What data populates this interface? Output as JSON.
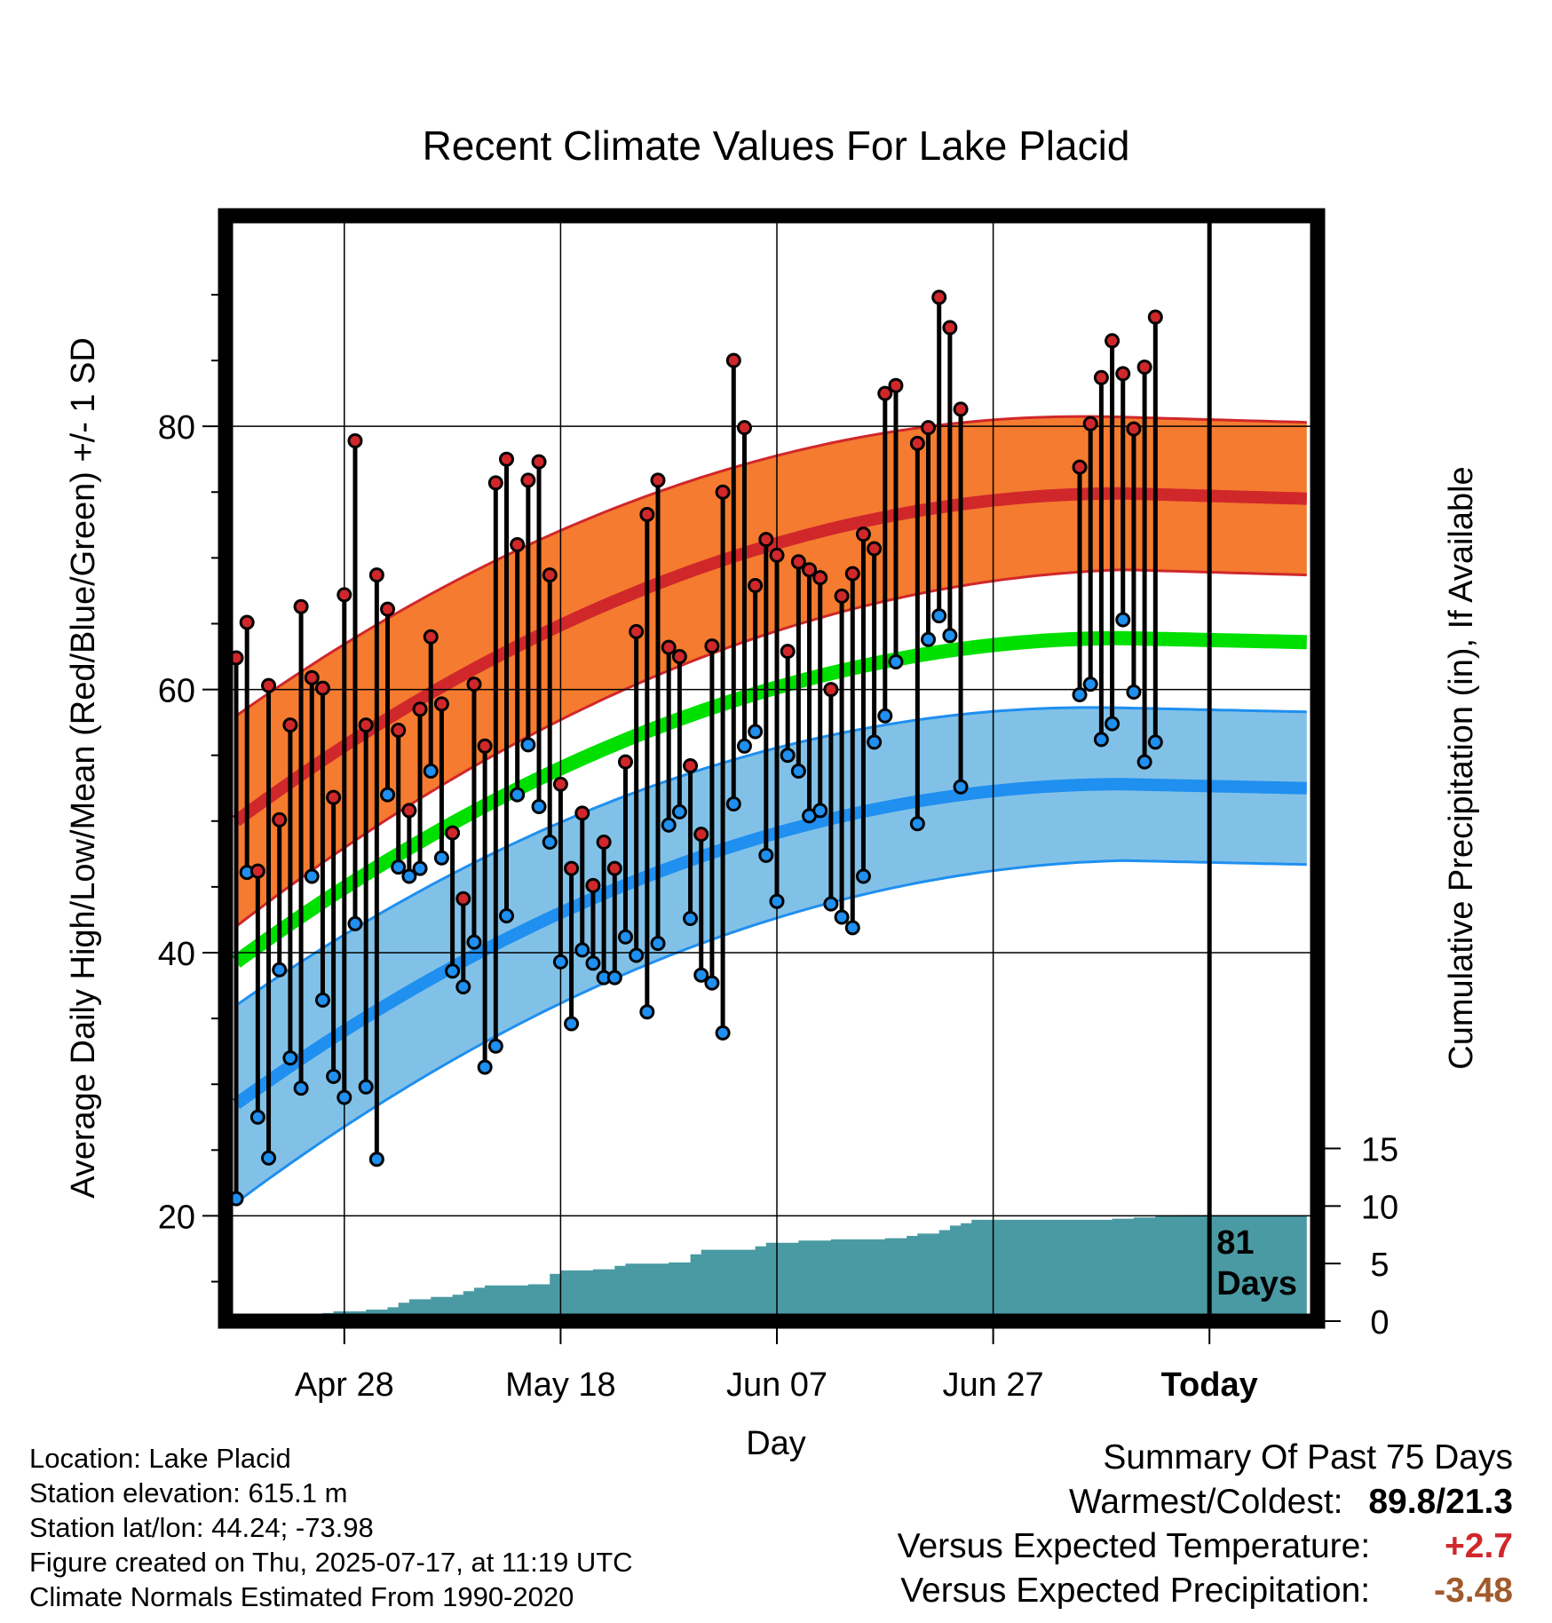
{
  "chart_data": {
    "type": "line",
    "title": "Recent Climate Values For Lake Placid",
    "xlabel": "Day",
    "ylabel_left": "Average Daily High/Low/Mean (Red/Blue/Green) +/- 1 SD",
    "ylabel_right": "Cumulative Precipitation (in), If Available",
    "x_tick_labels": [
      "Apr 28",
      "May 18",
      "Jun 07",
      "Jun 27",
      "Today"
    ],
    "x_tick_days": [
      10,
      30,
      50,
      70,
      90
    ],
    "xlim": [
      0,
      100
    ],
    "y_left_ticks": [
      20,
      40,
      60,
      80
    ],
    "y_left_lim": [
      12,
      96
    ],
    "y_right_ticks": [
      0,
      5,
      10,
      15
    ],
    "y_right_lim": [
      0,
      96
    ],
    "today_day": 90,
    "today_annotation": [
      "81",
      "Days"
    ],
    "normal_high": [
      50.0,
      74.9,
      74.5
    ],
    "normal_high_sd": [
      8.0,
      5.8
    ],
    "normal_low": [
      28.5,
      52.8,
      52.5
    ],
    "normal_low_sd": [
      7.5,
      5.8
    ],
    "normal_mean": [
      39.3,
      63.9,
      63.6
    ],
    "daily_high": [
      62.4,
      65.1,
      46.2,
      60.3,
      50.1,
      57.3,
      66.3,
      60.9,
      60.1,
      51.8,
      67.2,
      78.9,
      57.3,
      68.7,
      66.1,
      56.9,
      50.8,
      58.5,
      64.0,
      58.9,
      49.1,
      44.1,
      60.4,
      55.7,
      75.7,
      77.5,
      71.0,
      75.9,
      77.3,
      68.7,
      52.8,
      46.4,
      50.6,
      45.1,
      48.4,
      46.4,
      54.5,
      64.4,
      73.3,
      75.9,
      63.2,
      62.5,
      54.2,
      49.0,
      63.3,
      75.0,
      85.0,
      79.9,
      67.9,
      71.4,
      70.2,
      62.9,
      69.7,
      69.1,
      68.5,
      60.0,
      67.1,
      68.8,
      71.8,
      70.7,
      82.5,
      83.1,
      null,
      78.7,
      79.9,
      89.8,
      87.5,
      81.3,
      null,
      null,
      null,
      null,
      null,
      null,
      null,
      null,
      null,
      null,
      76.9,
      80.2,
      83.7,
      86.5,
      84.0,
      79.8,
      84.5,
      88.3
    ],
    "daily_low": [
      21.3,
      46.1,
      27.5,
      24.4,
      38.7,
      32.0,
      29.7,
      45.8,
      36.4,
      30.6,
      29.0,
      42.2,
      29.8,
      24.3,
      52.0,
      46.5,
      45.8,
      46.4,
      53.8,
      47.2,
      38.6,
      37.4,
      40.8,
      31.3,
      32.9,
      42.8,
      52.0,
      55.8,
      51.1,
      48.4,
      39.3,
      34.6,
      40.2,
      39.2,
      38.1,
      38.1,
      41.2,
      39.8,
      35.5,
      40.7,
      49.7,
      50.7,
      42.6,
      38.3,
      37.7,
      33.9,
      51.3,
      55.7,
      56.8,
      47.4,
      43.9,
      55.0,
      53.8,
      50.4,
      50.8,
      43.7,
      42.7,
      41.9,
      45.8,
      56.0,
      58.0,
      62.1,
      null,
      49.8,
      63.8,
      65.6,
      64.1,
      52.6,
      null,
      null,
      null,
      null,
      null,
      null,
      null,
      null,
      null,
      null,
      59.6,
      60.4,
      56.2,
      57.4,
      65.3,
      59.8,
      54.5,
      56.0
    ],
    "cumulative_precip_in": [
      [
        0,
        0.0
      ],
      [
        1,
        0.2
      ],
      [
        2,
        0.25
      ],
      [
        7,
        0.3
      ],
      [
        8,
        0.7
      ],
      [
        9,
        0.85
      ],
      [
        12,
        1.0
      ],
      [
        14,
        1.2
      ],
      [
        15,
        1.6
      ],
      [
        16,
        1.9
      ],
      [
        18,
        2.1
      ],
      [
        20,
        2.3
      ],
      [
        21,
        2.6
      ],
      [
        22,
        2.9
      ],
      [
        23,
        3.1
      ],
      [
        27,
        3.2
      ],
      [
        29,
        4.1
      ],
      [
        30,
        4.4
      ],
      [
        33,
        4.5
      ],
      [
        35,
        4.8
      ],
      [
        36,
        5.0
      ],
      [
        40,
        5.1
      ],
      [
        42,
        5.8
      ],
      [
        43,
        6.2
      ],
      [
        48,
        6.5
      ],
      [
        49,
        6.8
      ],
      [
        52,
        7.0
      ],
      [
        55,
        7.1
      ],
      [
        60,
        7.2
      ],
      [
        62,
        7.4
      ],
      [
        63,
        7.6
      ],
      [
        65,
        7.9
      ],
      [
        66,
        8.3
      ],
      [
        67,
        8.5
      ],
      [
        68,
        8.8
      ],
      [
        81,
        8.9
      ],
      [
        83,
        9.0
      ],
      [
        85,
        9.1
      ],
      [
        87,
        9.2
      ],
      [
        90,
        9.2
      ],
      [
        99,
        9.2
      ]
    ]
  },
  "info": {
    "location": "Location: Lake Placid",
    "elevation": "Station elevation: 615.1 m",
    "latlon": "Station lat/lon: 44.24; -73.98",
    "created": "Figure created on Thu, 2025-07-17, at 11:19 UTC",
    "normals": "Climate Normals Estimated From 1990-2020"
  },
  "summary": {
    "heading": "Summary Of Past 75 Days",
    "warmest_coldest_label": "Warmest/Coldest:",
    "warmest_coldest_value": "89.8/21.3",
    "temp_label": "Versus Expected Temperature:",
    "temp_value": "+2.7",
    "precip_label": "Versus Expected Precipitation:",
    "precip_value": "-3.48"
  },
  "colors": {
    "high_band": "#f47b2f",
    "high_line": "#d0272b",
    "low_band": "#82c1e7",
    "low_line": "#1f8ff0",
    "mean_line": "#00e000",
    "precip": "#4a9aa3",
    "high_dot": "#d0272b",
    "low_dot": "#1f8ff0"
  }
}
